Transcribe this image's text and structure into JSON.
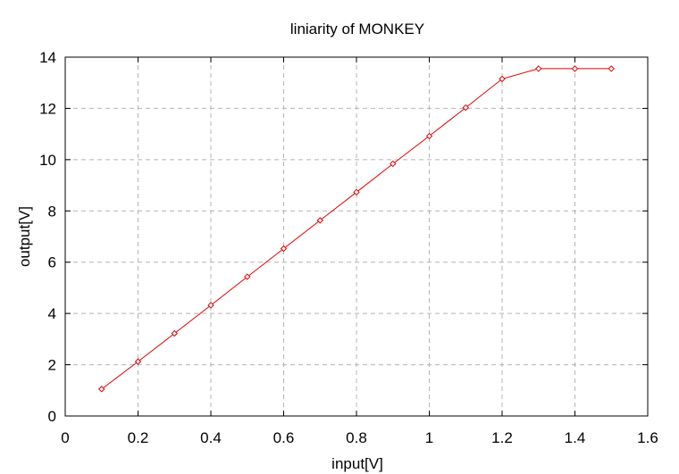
{
  "chart_data": {
    "type": "line",
    "title": "liniarity of MONKEY",
    "xlabel": "input[V]",
    "ylabel": "output[V]",
    "xlim": [
      0,
      1.6
    ],
    "ylim": [
      0,
      14
    ],
    "xticks": [
      "0",
      "0.2",
      "0.4",
      "0.6",
      "0.8",
      "1",
      "1.2",
      "1.4",
      "1.6"
    ],
    "yticks": [
      "0",
      "2",
      "4",
      "6",
      "8",
      "10",
      "12",
      "14"
    ],
    "grid": true,
    "line_color": "#e00000",
    "marker": "diamond",
    "series": [
      {
        "x": [
          0.1,
          0.2,
          0.3,
          0.4,
          0.5,
          0.6,
          0.7,
          0.8,
          0.9,
          1.0,
          1.1,
          1.2,
          1.3,
          1.4,
          1.5
        ],
        "y": [
          1.05,
          2.12,
          3.22,
          4.32,
          5.43,
          6.53,
          7.63,
          8.73,
          9.84,
          10.92,
          12.03,
          13.15,
          13.55,
          13.55,
          13.55
        ]
      }
    ]
  }
}
